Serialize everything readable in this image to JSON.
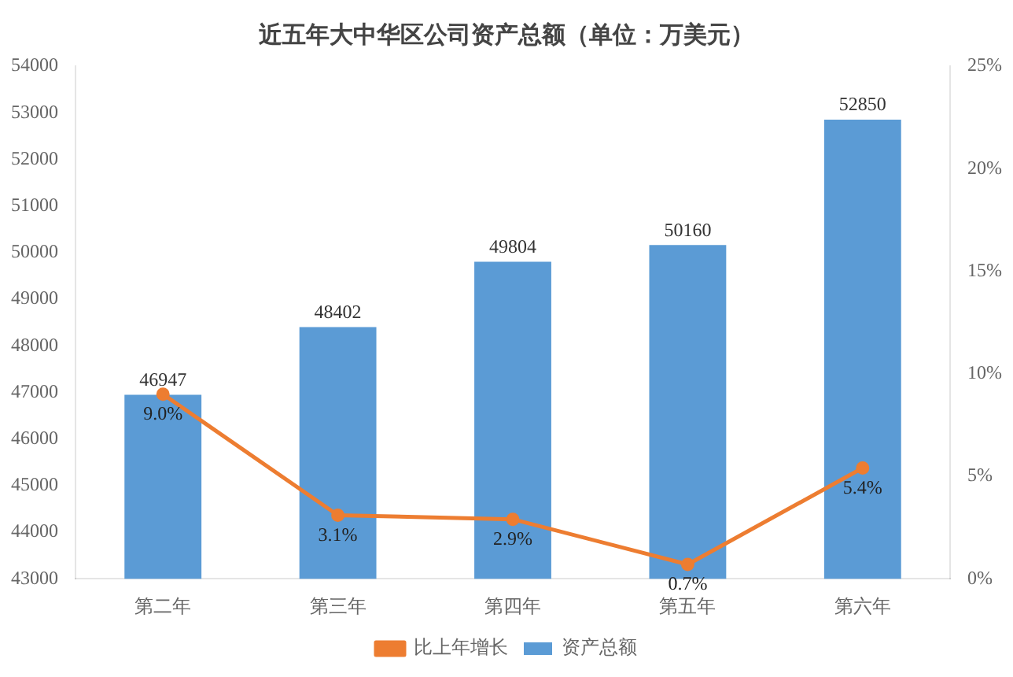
{
  "chart_data": {
    "type": "bar",
    "title": "近五年大中华区公司资产总额（单位：万美元）",
    "categories": [
      "第二年",
      "第三年",
      "第四年",
      "第五年",
      "第六年"
    ],
    "series": [
      {
        "name": "资产总额",
        "color": "#5b9bd5",
        "values": [
          46947,
          48402,
          49804,
          50160,
          52850
        ]
      },
      {
        "name": "比上年增长",
        "type": "line",
        "axis": "y2",
        "color": "#ed7d31",
        "values": [
          9.0,
          3.1,
          2.9,
          0.7,
          5.4
        ],
        "value_labels": [
          "9.0%",
          "3.1%",
          "2.9%",
          "0.7%",
          "5.4%"
        ]
      }
    ],
    "ylim": [
      43000,
      54000
    ],
    "yticks": [
      43000,
      44000,
      45000,
      46000,
      47000,
      48000,
      49000,
      50000,
      51000,
      52000,
      53000,
      54000
    ],
    "y2lim": [
      0,
      25
    ],
    "y2ticks": [
      {
        "value": 0,
        "label": "0%"
      },
      {
        "value": 5,
        "label": "5%"
      },
      {
        "value": 10,
        "label": "10%"
      },
      {
        "value": 15,
        "label": "15%"
      },
      {
        "value": 20,
        "label": "20%"
      },
      {
        "value": 25,
        "label": "25%"
      }
    ],
    "data_labels": true,
    "legend": "bottom",
    "grid": false,
    "marker": "circle",
    "line_style": "solid"
  }
}
